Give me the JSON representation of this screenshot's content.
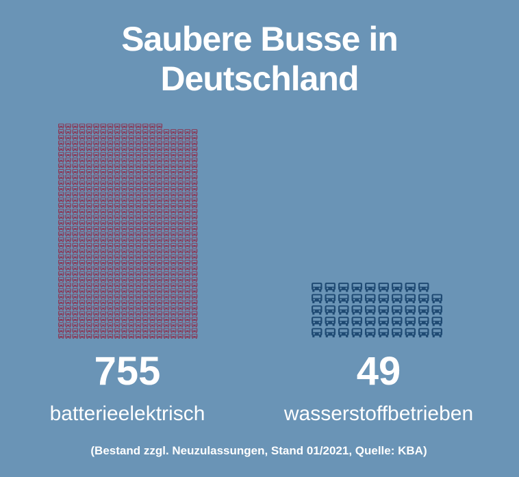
{
  "chart_data": {
    "type": "pictogram",
    "title": "Saubere Busse in Deutschland",
    "categories": [
      "batterieelektrisch",
      "wasserstoffbetrieben"
    ],
    "values": [
      755,
      49
    ],
    "colors": [
      "#8a3a58",
      "#1f4a73"
    ],
    "footnote": "(Bestand zzgl. Neuzulassungen, Stand 01/2021, Quelle: KBA)"
  }
}
